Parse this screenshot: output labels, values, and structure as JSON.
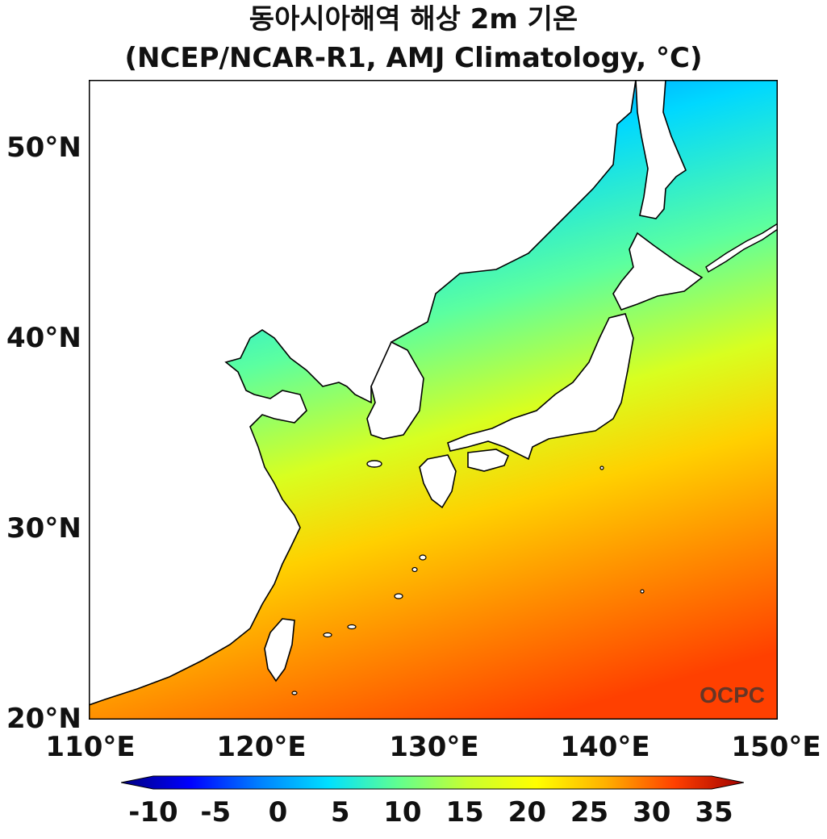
{
  "title": {
    "line1": "동아시아해역 해상 2m 기온",
    "line2": "(NCEP/NCAR-R1, AMJ Climatology, °C)"
  },
  "axes": {
    "lat_ticks": [
      "50°N",
      "40°N",
      "30°N",
      "20°N"
    ],
    "lon_ticks": [
      "110°E",
      "120°E",
      "130°E",
      "140°E",
      "150°E"
    ]
  },
  "watermark": "OCPC",
  "colorbar": {
    "labels": [
      "-10",
      "-5",
      "0",
      "5",
      "10",
      "15",
      "20",
      "25",
      "30",
      "35"
    ],
    "stops": [
      "#00007f",
      "#0000ff",
      "#0080ff",
      "#00e0ff",
      "#60ff90",
      "#c8ff30",
      "#ffff00",
      "#ffb000",
      "#ff4000",
      "#a00000"
    ]
  },
  "colors": {
    "ocean_north": "#0078ff",
    "ocean_mid": "#7dff80",
    "ocean_south": "#ff4a00",
    "land": "#ffffff",
    "coastline": "#000000"
  }
}
